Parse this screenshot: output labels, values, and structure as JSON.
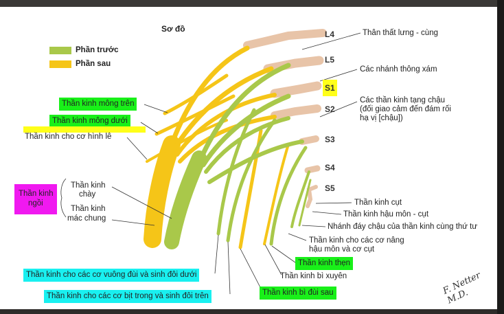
{
  "diagram": {
    "title": "Sơ đồ",
    "legend": [
      {
        "label": "Phần trước",
        "color": "#a9c84a"
      },
      {
        "label": "Phần sau",
        "color": "#f5c518"
      }
    ],
    "levels": [
      "L4",
      "L5",
      "S1",
      "S2",
      "S3",
      "S4",
      "S5"
    ],
    "right_labels": {
      "lumbosacral": "Thân thất lưng - cùng",
      "gray_rami": "Các nhánh thông xám",
      "pelvic_splanchnic_1": "Các thần kinh tạng chậu",
      "pelvic_splanchnic_2": "(đối giao cảm đến đám rối",
      "pelvic_splanchnic_3": "hạ vị [chậu])",
      "coccygeal": "Thần kinh cụt",
      "anococcygeal": "Thần kinh hậu môn - cụt",
      "perineal_branch": "Nhánh đáy chậu của thần kinh cùng thứ tư",
      "levator_1": "Thần kinh cho các cơ nâng",
      "levator_2": "hậu môn và cơ cụt"
    },
    "left_labels": {
      "superior_gluteal": "Thần kinh mông trên",
      "inferior_gluteal": "Thần kinh mông dưới",
      "piriformis": "Thần kinh cho cơ hình lê",
      "sciatic_1": "Thần kinh",
      "sciatic_2": "ngồi",
      "tibial_1": "Thần kinh",
      "tibial_2": "chày",
      "fibular_1": "Thần kinh",
      "fibular_2": "mác chung"
    },
    "bottom_labels": {
      "quadratus": "Thần kinh cho các cơ vuông đùi và sinh đôi dưới",
      "obturator": "Thần kinh cho các cơ bịt trong và sinh đôi trên",
      "pudendal": "Thần kinh thẹn",
      "perforating": "Thần kinh bì xuyên",
      "posterior_femoral": "Thần kinh bì đùi sau"
    },
    "signature": "F. Netter M.D."
  }
}
